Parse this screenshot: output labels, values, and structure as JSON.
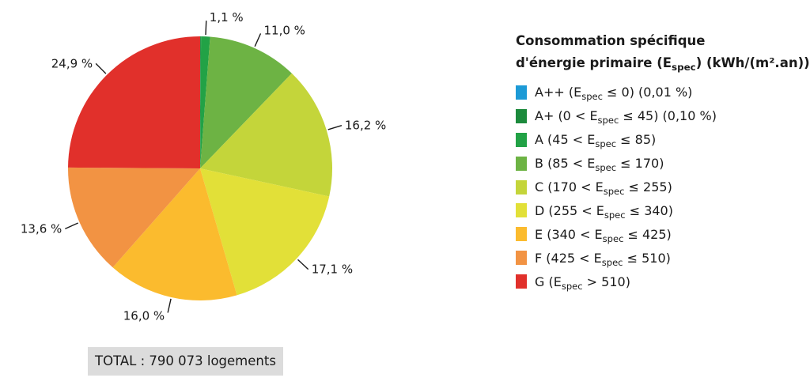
{
  "chart_data": {
    "type": "pie",
    "start_angle_deg": 0,
    "direction": "clockwise",
    "slices": [
      {
        "label": "A++ (Espec ≤ 0) (0,01 %)",
        "value": 0.01,
        "color": "#1c9ad6",
        "data_label": ""
      },
      {
        "label": "A+ (0 < Espec ≤ 45) (0,10 %)",
        "value": 0.1,
        "color": "#1c8a3c",
        "data_label": ""
      },
      {
        "label": "A (45 < Espec ≤ 85)",
        "value": 1.1,
        "color": "#22a246",
        "data_label": "1,1 %"
      },
      {
        "label": "B (85 < Espec ≤ 170)",
        "value": 11.0,
        "color": "#6db344",
        "data_label": "11,0 %"
      },
      {
        "label": "C (170 < Espec ≤ 255)",
        "value": 16.2,
        "color": "#c4d53a",
        "data_label": "16,2 %"
      },
      {
        "label": "D (255 < Espec ≤ 340)",
        "value": 17.1,
        "color": "#e2e038",
        "data_label": "17,1 %"
      },
      {
        "label": "E (340 < Espec ≤ 425)",
        "value": 16.0,
        "color": "#fbbb2e",
        "data_label": "16,0 %"
      },
      {
        "label": "F (425 < Espec ≤ 510)",
        "value": 13.6,
        "color": "#f29343",
        "data_label": "13,6 %"
      },
      {
        "label": "G (Espec > 510)",
        "value": 24.9,
        "color": "#e1302b",
        "data_label": "24,9 %"
      }
    ],
    "legend_position": "right"
  },
  "legend": {
    "title_line1": "Consommation spécifique",
    "title_line2_before": "d'énergie primaire (E",
    "title_line2_sub": "spec",
    "title_line2_after": ") (kWh/(m².an))",
    "items": [
      {
        "before": "A++ (E",
        "sub": "spec",
        "after": " ≤ 0) (0,01 %)",
        "color": "#1c9ad6"
      },
      {
        "before": "A+ (0 < E",
        "sub": "spec",
        "after": " ≤ 45) (0,10 %)",
        "color": "#1c8a3c"
      },
      {
        "before": "A (45 < E",
        "sub": "spec",
        "after": " ≤ 85)",
        "color": "#22a246"
      },
      {
        "before": "B (85 < E",
        "sub": "spec",
        "after": " ≤ 170)",
        "color": "#6db344"
      },
      {
        "before": "C (170 < E",
        "sub": "spec",
        "after": " ≤ 255)",
        "color": "#c4d53a"
      },
      {
        "before": "D (255 < E",
        "sub": "spec",
        "after": " ≤ 340)",
        "color": "#e2e038"
      },
      {
        "before": "E (340 < E",
        "sub": "spec",
        "after": " ≤ 425)",
        "color": "#fbbb2e"
      },
      {
        "before": "F (425 < E",
        "sub": "spec",
        "after": " ≤ 510)",
        "color": "#f29343"
      },
      {
        "before": "G (E",
        "sub": "spec",
        "after": " > 510)",
        "color": "#e1302b"
      }
    ]
  },
  "total_label": "TOTAL : 790 073 logements"
}
